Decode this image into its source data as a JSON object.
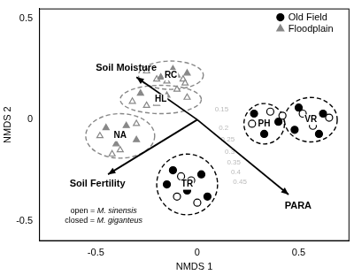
{
  "chart_data": {
    "type": "scatter",
    "xlabel": "NMDS 1",
    "ylabel": "NMDS 2",
    "xlim": [
      -0.78,
      0.75
    ],
    "ylim": [
      -0.6,
      0.55
    ],
    "xticks": [
      -0.5,
      0,
      0.5
    ],
    "yticks": [
      -0.5,
      0,
      0.5
    ],
    "grid": false,
    "legend": "top right",
    "note": [
      "open = M. sinensis",
      "closed = M. giganteus"
    ],
    "series": [
      {
        "name": "Old Field",
        "color": "#000000",
        "marker": "circle",
        "closed": {
          "x": [
            0.28,
            0.4,
            0.33,
            0.5,
            0.62,
            0.48,
            0.6,
            0.55,
            -0.15,
            -0.12,
            0.02,
            0.05,
            -0.05
          ],
          "y": [
            0.03,
            -0.01,
            -0.07,
            0.06,
            0.03,
            -0.05,
            -0.07,
            0.0,
            -0.32,
            -0.25,
            -0.27,
            -0.38,
            -0.35
          ]
        },
        "open": {
          "x": [
            0.27,
            0.36,
            0.42,
            0.52,
            0.57,
            0.65,
            -0.08,
            -0.03,
            0.0,
            -0.1
          ],
          "y": [
            -0.02,
            0.04,
            0.02,
            0.03,
            -0.03,
            0.01,
            -0.28,
            -0.3,
            -0.41,
            -0.38
          ]
        }
      },
      {
        "name": "Floodplain",
        "color": "#888888",
        "marker": "triangle",
        "closed": {
          "x": [
            -0.12,
            -0.05,
            -0.1,
            -0.18,
            -0.28,
            -0.15,
            -0.2,
            -0.45,
            -0.35,
            -0.3,
            -0.4
          ],
          "y": [
            0.25,
            0.23,
            0.22,
            0.21,
            0.13,
            0.12,
            0.08,
            -0.04,
            -0.03,
            -0.1,
            -0.12
          ]
        },
        "open": {
          "x": [
            -0.25,
            -0.2,
            -0.07,
            -0.06,
            -0.15,
            -0.1,
            -0.05,
            -0.25,
            -0.32,
            -0.48,
            -0.38,
            -0.3,
            -0.42
          ],
          "y": [
            0.24,
            0.2,
            0.2,
            0.18,
            0.19,
            0.15,
            0.11,
            0.07,
            0.09,
            -0.08,
            -0.15,
            -0.02,
            -0.17
          ]
        }
      }
    ],
    "groups": [
      {
        "name": "RC",
        "series": "Floodplain",
        "center": [
          -0.13,
          0.22
        ],
        "radii": [
          0.16,
          0.07
        ]
      },
      {
        "name": "HL",
        "series": "Floodplain",
        "center": [
          -0.18,
          0.1
        ],
        "radii": [
          0.2,
          0.07
        ]
      },
      {
        "name": "NA",
        "series": "Floodplain",
        "center": [
          -0.38,
          -0.08
        ],
        "radii": [
          0.17,
          0.11
        ]
      },
      {
        "name": "PH",
        "series": "Old Field",
        "center": [
          0.33,
          -0.02
        ],
        "radii": [
          0.1,
          0.1
        ]
      },
      {
        "name": "VR",
        "series": "Old Field",
        "center": [
          0.56,
          0.0
        ],
        "radii": [
          0.13,
          0.11
        ]
      },
      {
        "name": "TR",
        "series": "Old Field",
        "center": [
          -0.05,
          -0.32
        ],
        "radii": [
          0.15,
          0.15
        ]
      }
    ],
    "arrows": [
      {
        "label": "Soil Moisture",
        "x": -0.3,
        "y": 0.21
      },
      {
        "label": "Soil Fertility",
        "x": -0.44,
        "y": -0.27
      },
      {
        "label": "PARA",
        "x": 0.45,
        "y": -0.37
      }
    ],
    "contour_labels": [
      {
        "level": 0.15,
        "x": 0.12,
        "y": 0.05
      },
      {
        "level": 0.2,
        "x": 0.13,
        "y": -0.04
      },
      {
        "level": 0.25,
        "x": 0.15,
        "y": -0.1
      },
      {
        "level": 0.3,
        "x": 0.16,
        "y": -0.16
      },
      {
        "level": 0.35,
        "x": 0.18,
        "y": -0.21
      },
      {
        "level": 0.4,
        "x": 0.19,
        "y": -0.26
      },
      {
        "level": 0.45,
        "x": 0.21,
        "y": -0.31
      }
    ]
  }
}
